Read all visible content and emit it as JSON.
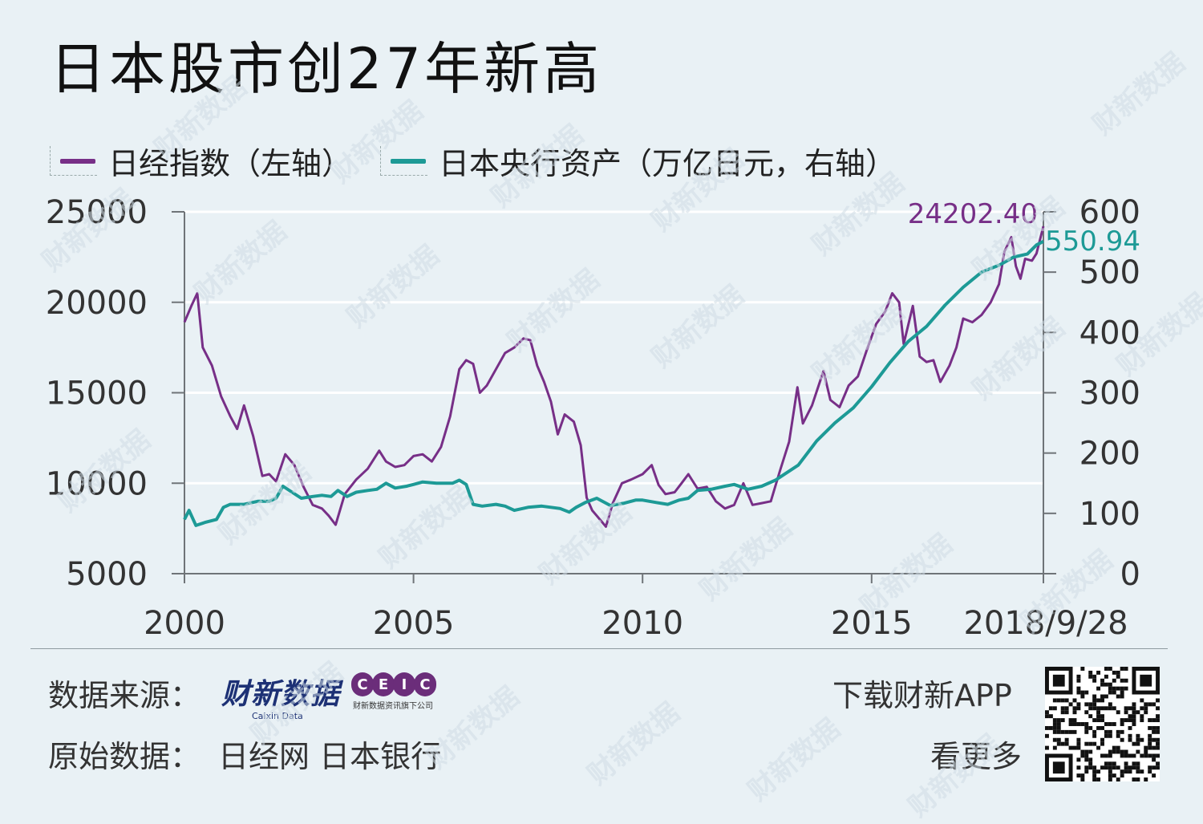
{
  "title": "日本股市创27年新高",
  "legend": [
    {
      "label": "日经指数（左轴）",
      "color": "#772f87"
    },
    {
      "label": "日本央行资产（万亿日元，右轴）",
      "color": "#1d9a96"
    }
  ],
  "chart_data": {
    "type": "line",
    "x_ticks": [
      "2000",
      "2005",
      "2010",
      "2015",
      "2018/9/28"
    ],
    "x_range": [
      2000,
      2018.75
    ],
    "left_axis": {
      "ticks": [
        "25000",
        "20000",
        "15000",
        "10000",
        "5000"
      ],
      "range": [
        5000,
        25000
      ]
    },
    "right_axis": {
      "ticks": [
        "600",
        "500",
        "400",
        "300",
        "200",
        "100",
        "0"
      ],
      "range": [
        0,
        600
      ]
    },
    "annotations": {
      "nikkei_last": "24202.40",
      "boj_last": "550.94"
    },
    "series": [
      {
        "name": "日经指数（左轴）",
        "color": "#772f87",
        "axis": "left",
        "points": [
          [
            2000.0,
            18900
          ],
          [
            2000.15,
            19800
          ],
          [
            2000.28,
            20500
          ],
          [
            2000.4,
            17500
          ],
          [
            2000.6,
            16500
          ],
          [
            2000.8,
            14800
          ],
          [
            2001.0,
            13700
          ],
          [
            2001.15,
            13000
          ],
          [
            2001.3,
            14300
          ],
          [
            2001.5,
            12600
          ],
          [
            2001.7,
            10400
          ],
          [
            2001.85,
            10500
          ],
          [
            2002.0,
            10100
          ],
          [
            2002.2,
            11600
          ],
          [
            2002.4,
            11000
          ],
          [
            2002.6,
            9800
          ],
          [
            2002.8,
            8800
          ],
          [
            2003.0,
            8600
          ],
          [
            2003.15,
            8200
          ],
          [
            2003.3,
            7700
          ],
          [
            2003.5,
            9400
          ],
          [
            2003.75,
            10200
          ],
          [
            2004.0,
            10800
          ],
          [
            2004.25,
            11800
          ],
          [
            2004.4,
            11200
          ],
          [
            2004.6,
            10900
          ],
          [
            2004.8,
            11000
          ],
          [
            2005.0,
            11500
          ],
          [
            2005.2,
            11600
          ],
          [
            2005.4,
            11200
          ],
          [
            2005.6,
            12000
          ],
          [
            2005.8,
            13700
          ],
          [
            2006.0,
            16300
          ],
          [
            2006.15,
            16800
          ],
          [
            2006.3,
            16600
          ],
          [
            2006.45,
            15000
          ],
          [
            2006.6,
            15400
          ],
          [
            2006.8,
            16300
          ],
          [
            2007.0,
            17200
          ],
          [
            2007.2,
            17500
          ],
          [
            2007.4,
            18000
          ],
          [
            2007.55,
            17900
          ],
          [
            2007.7,
            16500
          ],
          [
            2007.85,
            15600
          ],
          [
            2008.0,
            14500
          ],
          [
            2008.15,
            12700
          ],
          [
            2008.3,
            13800
          ],
          [
            2008.5,
            13400
          ],
          [
            2008.65,
            12100
          ],
          [
            2008.78,
            9200
          ],
          [
            2008.9,
            8500
          ],
          [
            2009.0,
            8200
          ],
          [
            2009.2,
            7600
          ],
          [
            2009.35,
            8900
          ],
          [
            2009.55,
            10000
          ],
          [
            2009.75,
            10200
          ],
          [
            2010.0,
            10500
          ],
          [
            2010.2,
            11000
          ],
          [
            2010.35,
            9900
          ],
          [
            2010.5,
            9400
          ],
          [
            2010.7,
            9500
          ],
          [
            2010.85,
            10000
          ],
          [
            2011.0,
            10500
          ],
          [
            2011.2,
            9700
          ],
          [
            2011.4,
            9800
          ],
          [
            2011.6,
            9000
          ],
          [
            2011.8,
            8600
          ],
          [
            2012.0,
            8800
          ],
          [
            2012.2,
            10000
          ],
          [
            2012.4,
            8800
          ],
          [
            2012.6,
            8900
          ],
          [
            2012.8,
            9000
          ],
          [
            2013.0,
            10700
          ],
          [
            2013.2,
            12300
          ],
          [
            2013.38,
            15300
          ],
          [
            2013.5,
            13300
          ],
          [
            2013.7,
            14300
          ],
          [
            2013.95,
            16200
          ],
          [
            2014.1,
            14600
          ],
          [
            2014.3,
            14200
          ],
          [
            2014.5,
            15400
          ],
          [
            2014.7,
            15900
          ],
          [
            2014.9,
            17400
          ],
          [
            2015.1,
            18800
          ],
          [
            2015.3,
            19500
          ],
          [
            2015.45,
            20500
          ],
          [
            2015.6,
            20000
          ],
          [
            2015.7,
            17700
          ],
          [
            2015.9,
            19800
          ],
          [
            2016.05,
            17000
          ],
          [
            2016.2,
            16700
          ],
          [
            2016.35,
            16800
          ],
          [
            2016.5,
            15600
          ],
          [
            2016.7,
            16500
          ],
          [
            2016.85,
            17500
          ],
          [
            2017.0,
            19100
          ],
          [
            2017.2,
            18900
          ],
          [
            2017.4,
            19300
          ],
          [
            2017.6,
            20000
          ],
          [
            2017.78,
            21000
          ],
          [
            2017.9,
            22800
          ],
          [
            2018.05,
            23600
          ],
          [
            2018.15,
            22000
          ],
          [
            2018.25,
            21300
          ],
          [
            2018.35,
            22400
          ],
          [
            2018.5,
            22300
          ],
          [
            2018.6,
            22700
          ],
          [
            2018.75,
            24202
          ]
        ]
      },
      {
        "name": "日本央行资产（万亿日元，右轴）",
        "color": "#1d9a96",
        "axis": "right",
        "points": [
          [
            2000.0,
            90
          ],
          [
            2000.1,
            105
          ],
          [
            2000.25,
            80
          ],
          [
            2000.45,
            85
          ],
          [
            2000.7,
            90
          ],
          [
            2000.85,
            110
          ],
          [
            2001.0,
            115
          ],
          [
            2001.3,
            115
          ],
          [
            2001.6,
            120
          ],
          [
            2001.85,
            120
          ],
          [
            2002.0,
            125
          ],
          [
            2002.15,
            145
          ],
          [
            2002.35,
            135
          ],
          [
            2002.55,
            125
          ],
          [
            2002.8,
            128
          ],
          [
            2003.0,
            130
          ],
          [
            2003.2,
            128
          ],
          [
            2003.35,
            138
          ],
          [
            2003.55,
            128
          ],
          [
            2003.75,
            135
          ],
          [
            2004.0,
            138
          ],
          [
            2004.2,
            140
          ],
          [
            2004.4,
            150
          ],
          [
            2004.6,
            142
          ],
          [
            2004.85,
            145
          ],
          [
            2005.0,
            148
          ],
          [
            2005.2,
            152
          ],
          [
            2005.5,
            150
          ],
          [
            2005.85,
            150
          ],
          [
            2006.0,
            155
          ],
          [
            2006.15,
            148
          ],
          [
            2006.3,
            115
          ],
          [
            2006.5,
            112
          ],
          [
            2006.8,
            115
          ],
          [
            2007.0,
            112
          ],
          [
            2007.2,
            105
          ],
          [
            2007.5,
            110
          ],
          [
            2007.8,
            112
          ],
          [
            2008.0,
            110
          ],
          [
            2008.2,
            108
          ],
          [
            2008.4,
            102
          ],
          [
            2008.55,
            110
          ],
          [
            2008.75,
            118
          ],
          [
            2009.0,
            125
          ],
          [
            2009.3,
            113
          ],
          [
            2009.6,
            117
          ],
          [
            2009.85,
            122
          ],
          [
            2010.0,
            122
          ],
          [
            2010.3,
            118
          ],
          [
            2010.55,
            115
          ],
          [
            2010.8,
            122
          ],
          [
            2011.0,
            125
          ],
          [
            2011.2,
            138
          ],
          [
            2011.5,
            140
          ],
          [
            2011.8,
            145
          ],
          [
            2012.0,
            148
          ],
          [
            2012.3,
            140
          ],
          [
            2012.6,
            145
          ],
          [
            2012.9,
            155
          ],
          [
            2013.0,
            160
          ],
          [
            2013.4,
            180
          ],
          [
            2013.8,
            220
          ],
          [
            2014.2,
            250
          ],
          [
            2014.6,
            275
          ],
          [
            2015.0,
            310
          ],
          [
            2015.4,
            350
          ],
          [
            2015.8,
            385
          ],
          [
            2016.2,
            410
          ],
          [
            2016.6,
            445
          ],
          [
            2017.0,
            475
          ],
          [
            2017.4,
            500
          ],
          [
            2017.8,
            512
          ],
          [
            2018.1,
            525
          ],
          [
            2018.4,
            530
          ],
          [
            2018.6,
            545
          ],
          [
            2018.75,
            551
          ]
        ]
      }
    ]
  },
  "footer": {
    "source_label": "数据来源：",
    "caixin_logo": "财新数据",
    "caixin_logo_sub": "Caixin Data",
    "ceic_letters": [
      "C",
      "E",
      "I",
      "C"
    ],
    "ceic_sub": "财新数据资讯旗下公司",
    "original_label": "原始数据：",
    "original_sources": "日经网  日本银行",
    "download_text": "下载财新APP",
    "more_text": "看更多"
  },
  "watermark_text": "财新数据"
}
